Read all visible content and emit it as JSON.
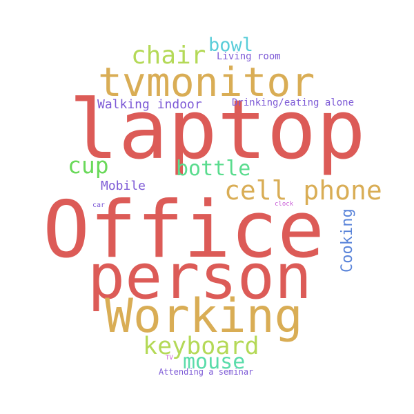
{
  "words": {
    "office": {
      "text": "Office",
      "color": "#dc5b57"
    },
    "laptop": {
      "text": "laptop",
      "color": "#dc5b57"
    },
    "person": {
      "text": "person",
      "color": "#dc5b57"
    },
    "working": {
      "text": "Working",
      "color": "#d9ad55"
    },
    "tvmonitor": {
      "text": "tvmonitor",
      "color": "#d9ad55"
    },
    "cellphone": {
      "text": "cell phone",
      "color": "#d9ad55"
    },
    "keyboard": {
      "text": "keyboard",
      "color": "#b4d957"
    },
    "chair": {
      "text": "chair",
      "color": "#b4d957"
    },
    "bottle": {
      "text": "bottle",
      "color": "#5adc8e"
    },
    "cup": {
      "text": "cup",
      "color": "#6ad95a"
    },
    "mouse": {
      "text": "mouse",
      "color": "#5adcaa"
    },
    "bowl": {
      "text": "bowl",
      "color": "#5acdd9"
    },
    "cooking": {
      "text": "Cooking",
      "color": "#5a84d9"
    },
    "walking": {
      "text": "Walking indoor",
      "color": "#7d5ad6"
    },
    "mobile": {
      "text": "Mobile",
      "color": "#7d5ad6"
    },
    "drinking": {
      "text": "Drinking/eating alone",
      "color": "#7d5ad6"
    },
    "living": {
      "text": "Living room",
      "color": "#7d5ad6"
    },
    "seminar": {
      "text": "Attending a seminar",
      "color": "#7d5ad6"
    },
    "car": {
      "text": "car",
      "color": "#7d5ad6"
    },
    "clock": {
      "text": "clock",
      "color": "#c85ad6"
    },
    "tv": {
      "text": "TV",
      "color": "#c85ad6"
    }
  }
}
